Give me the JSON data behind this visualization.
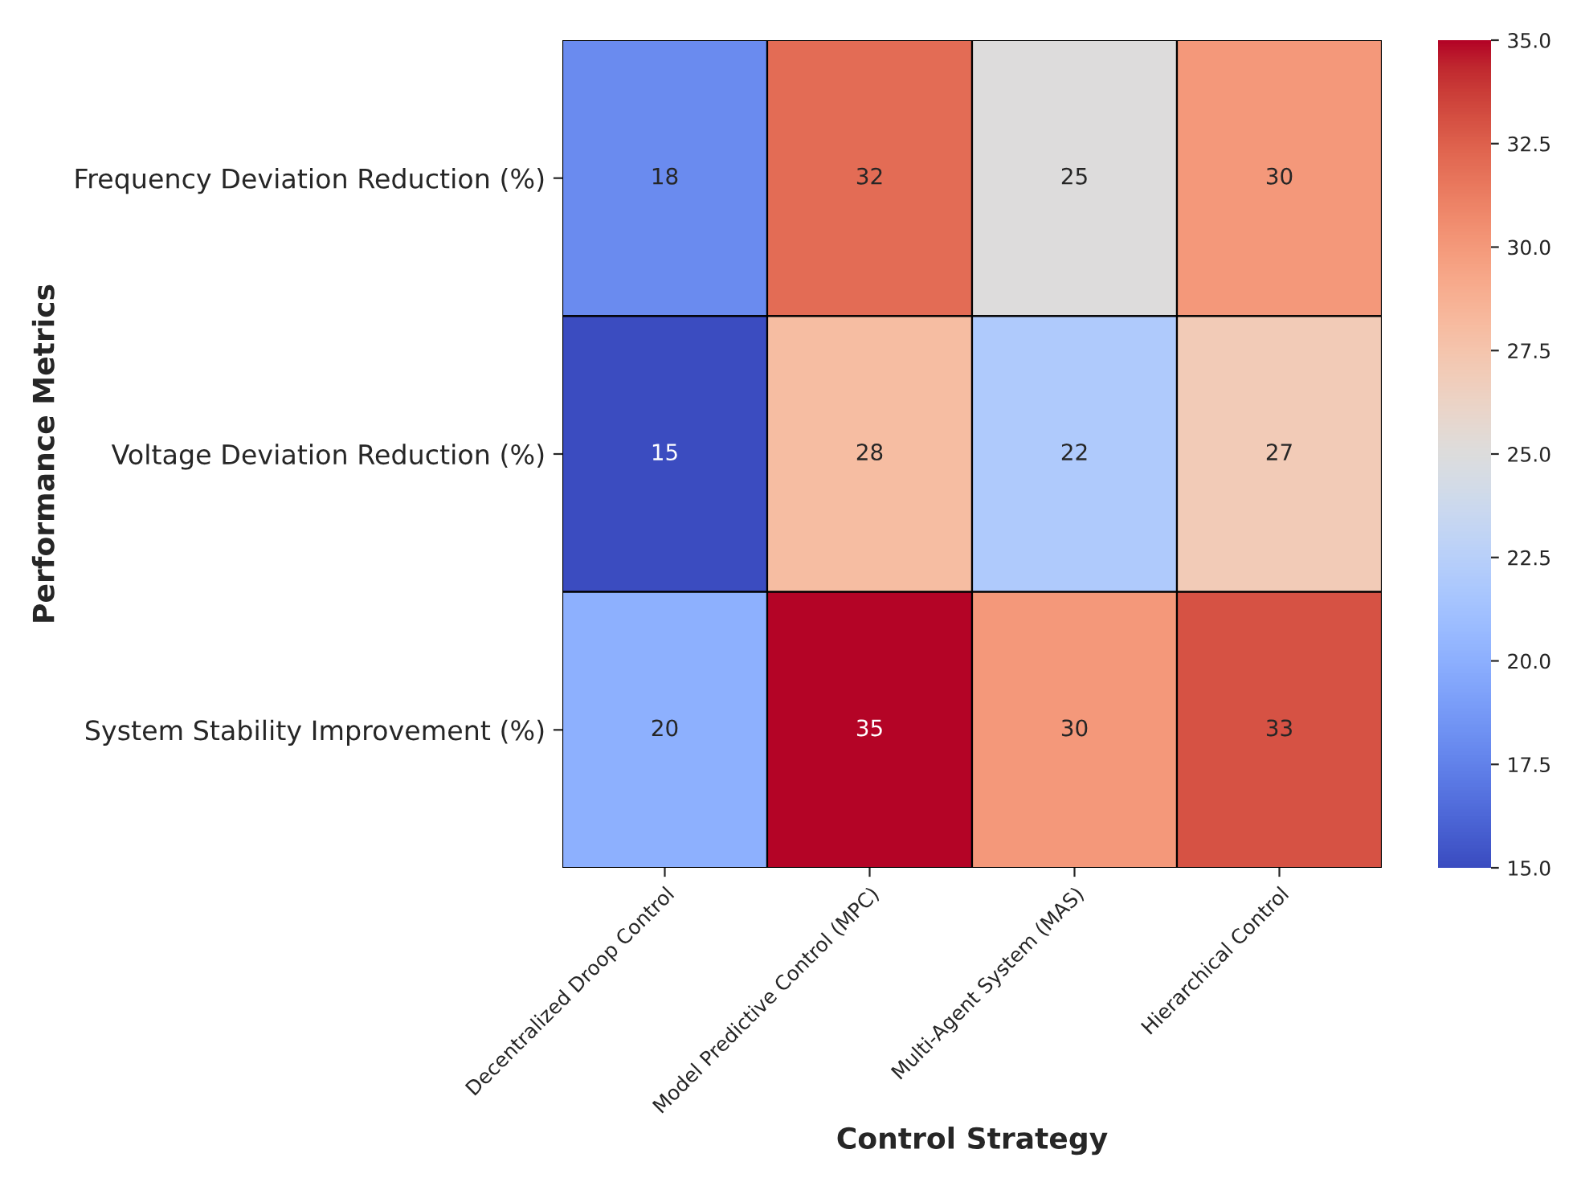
{
  "chart_data": {
    "type": "heatmap",
    "xlabel": "Control Strategy",
    "ylabel": "Performance Metrics",
    "categories": [
      "Decentralized Droop Control",
      "Model Predictive Control (MPC)",
      "Multi-Agent System (MAS)",
      "Hierarchical Control"
    ],
    "y_categories": [
      "Frequency Deviation Reduction (%)",
      "Voltage Deviation Reduction (%)",
      "System Stability Improvement (%)"
    ],
    "cells": [
      [
        18,
        32,
        25,
        30
      ],
      [
        15,
        28,
        22,
        27
      ],
      [
        20,
        35,
        30,
        33
      ]
    ],
    "data_labels": true,
    "clim": [
      15,
      35
    ],
    "cticks": [
      {
        "value": 15,
        "label": "15.0"
      },
      {
        "value": 17.5,
        "label": "17.5"
      },
      {
        "value": 20,
        "label": "20.0"
      },
      {
        "value": 22.5,
        "label": "22.5"
      },
      {
        "value": 25,
        "label": "25.0"
      },
      {
        "value": 27.5,
        "label": "27.5"
      },
      {
        "value": 30,
        "label": "30.0"
      },
      {
        "value": 32.5,
        "label": "32.5"
      },
      {
        "value": 35,
        "label": "35.0"
      }
    ]
  }
}
